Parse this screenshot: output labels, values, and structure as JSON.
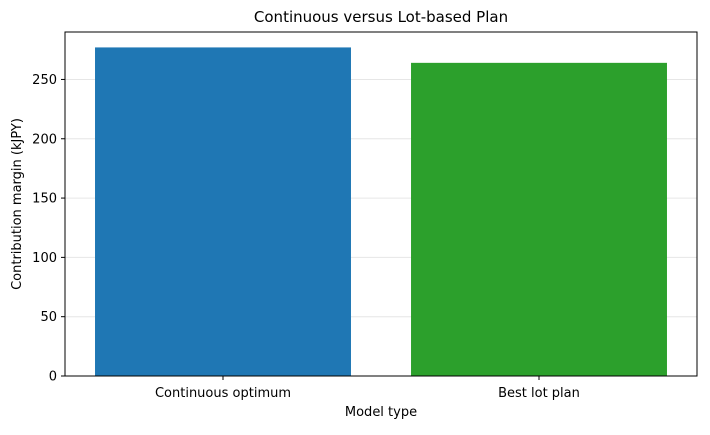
{
  "chart_data": {
    "type": "bar",
    "title": "Continuous versus Lot-based Plan",
    "xlabel": "Model type",
    "ylabel": "Contribution margin (kJPY)",
    "categories": [
      "Continuous optimum",
      "Best lot plan"
    ],
    "values": [
      277,
      264
    ],
    "colors": [
      "#1f77b4",
      "#2ca02c"
    ],
    "ylim": [
      0,
      290
    ],
    "yticks": [
      0,
      50,
      100,
      150,
      200,
      250
    ],
    "grid": "y-axis, light",
    "legend": "none"
  }
}
